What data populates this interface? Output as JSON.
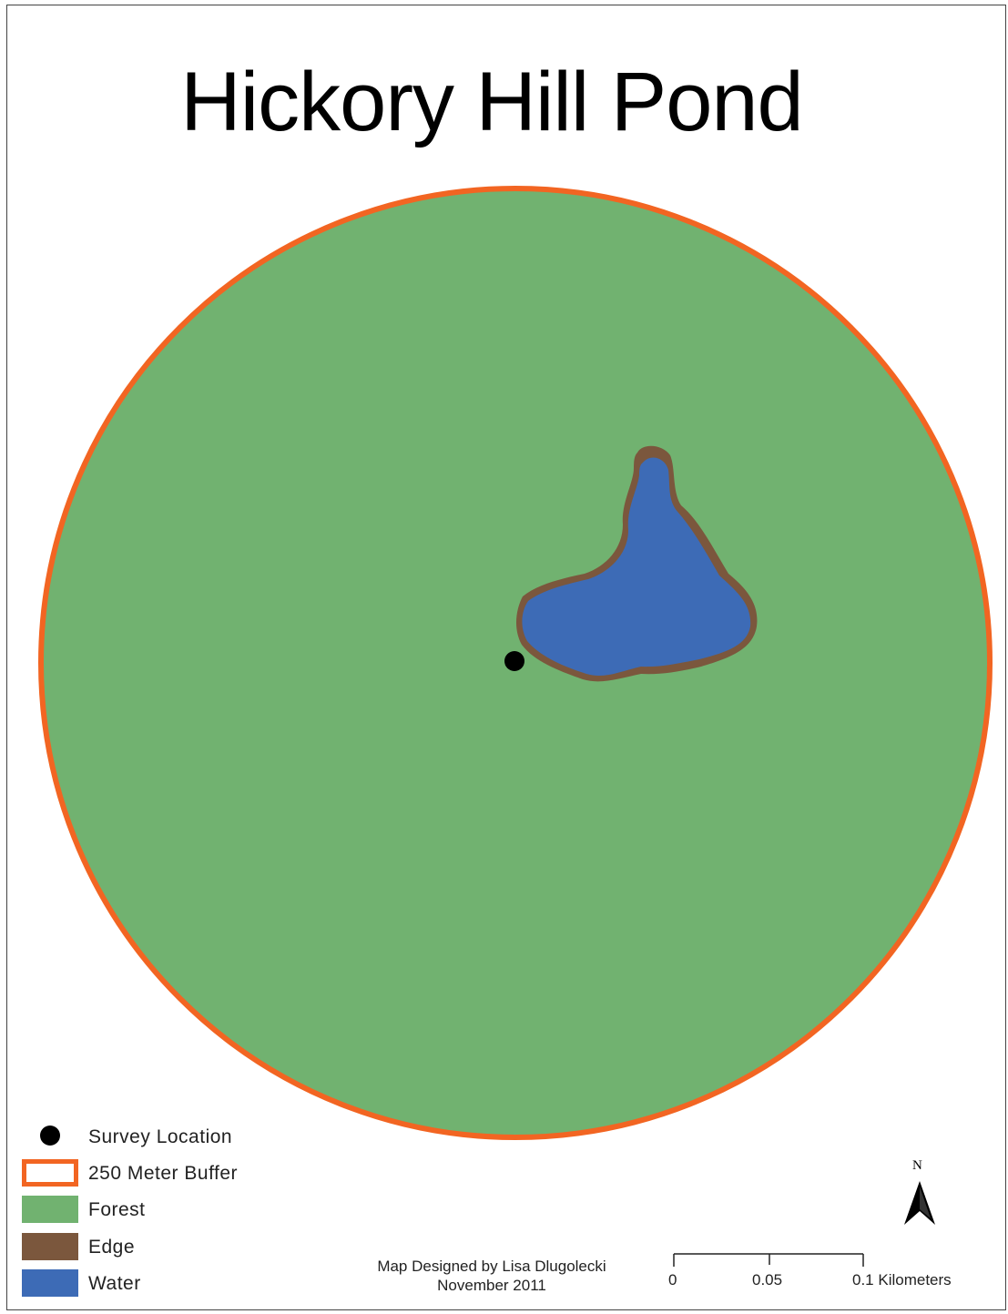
{
  "map": {
    "title": "Hickory Hill Pond",
    "colors": {
      "forest": "#71B270",
      "buffer_outline": "#F26522",
      "edge": "#7B573D",
      "water": "#3D6BB6",
      "survey_point": "#000000"
    }
  },
  "legend": {
    "items": [
      {
        "label": "Survey Location",
        "symbol": "black-dot-icon"
      },
      {
        "label": "250 Meter Buffer",
        "symbol": "orange-outline-box"
      },
      {
        "label": "Forest",
        "symbol": "green-fill-box"
      },
      {
        "label": "Edge",
        "symbol": "brown-fill-box"
      },
      {
        "label": "Water",
        "symbol": "blue-fill-box"
      }
    ]
  },
  "credit": {
    "line1": "Map Designed by Lisa Dlugolecki",
    "line2": "November 2011"
  },
  "scale_bar": {
    "ticks": [
      "0",
      "0.05",
      "0.1 Kilometers"
    ]
  },
  "north_arrow": {
    "label": "N",
    "icon": "north-arrow-icon"
  }
}
